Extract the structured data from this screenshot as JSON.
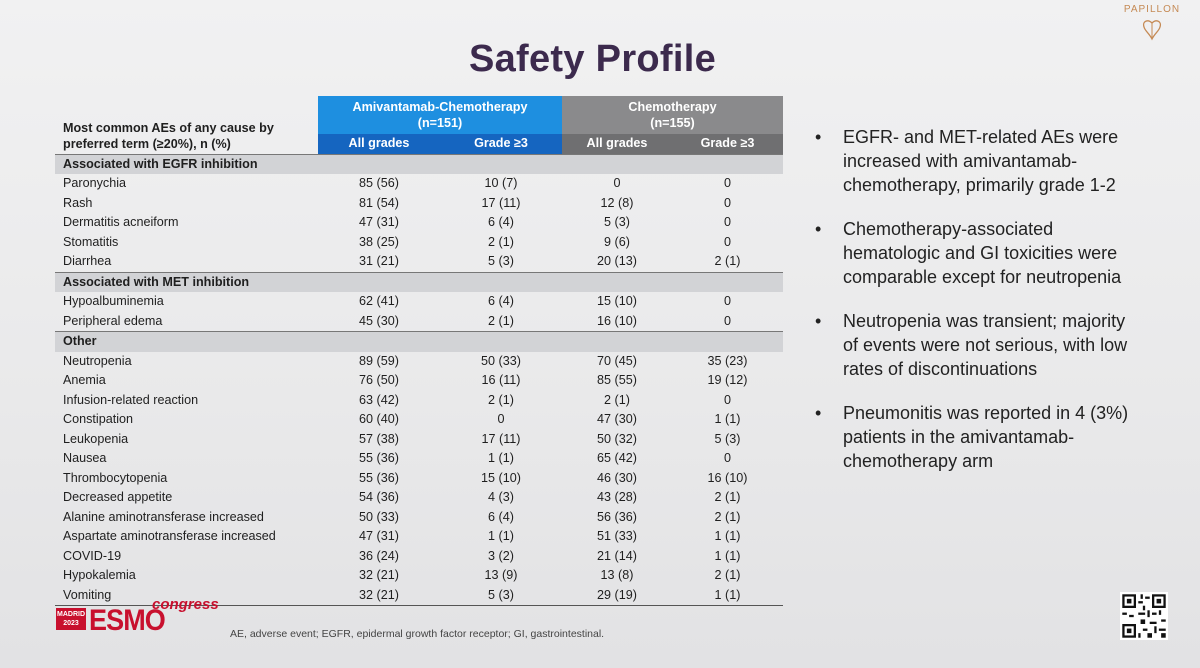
{
  "title": "Safety Profile",
  "logo": {
    "brand": "PAPILLON"
  },
  "table": {
    "row_header": "Most common AEs of any cause by preferred term (≥20%), n (%)",
    "arms": [
      {
        "name": "Amivantamab-Chemotherapy",
        "n": "(n=151)"
      },
      {
        "name": "Chemotherapy",
        "n": "(n=155)"
      }
    ],
    "subheaders": [
      "All grades",
      "Grade ≥3",
      "All grades",
      "Grade ≥3"
    ],
    "sections": [
      {
        "label": "Associated with EGFR inhibition",
        "rows": [
          {
            "ae": "Paronychia",
            "v": [
              "85 (56)",
              "10 (7)",
              "0",
              "0"
            ]
          },
          {
            "ae": "Rash",
            "v": [
              "81 (54)",
              "17 (11)",
              "12 (8)",
              "0"
            ]
          },
          {
            "ae": "Dermatitis acneiform",
            "v": [
              "47 (31)",
              "6 (4)",
              "5 (3)",
              "0"
            ]
          },
          {
            "ae": "Stomatitis",
            "v": [
              "38 (25)",
              "2 (1)",
              "9 (6)",
              "0"
            ]
          },
          {
            "ae": "Diarrhea",
            "v": [
              "31 (21)",
              "5 (3)",
              "20 (13)",
              "2 (1)"
            ]
          }
        ]
      },
      {
        "label": "Associated with MET inhibition",
        "rows": [
          {
            "ae": "Hypoalbuminemia",
            "v": [
              "62 (41)",
              "6 (4)",
              "15 (10)",
              "0"
            ]
          },
          {
            "ae": "Peripheral edema",
            "v": [
              "45 (30)",
              "2 (1)",
              "16 (10)",
              "0"
            ]
          }
        ]
      },
      {
        "label": "Other",
        "rows": [
          {
            "ae": "Neutropenia",
            "v": [
              "89 (59)",
              "50 (33)",
              "70 (45)",
              "35 (23)"
            ]
          },
          {
            "ae": "Anemia",
            "v": [
              "76 (50)",
              "16 (11)",
              "85 (55)",
              "19 (12)"
            ]
          },
          {
            "ae": "Infusion-related reaction",
            "v": [
              "63 (42)",
              "2 (1)",
              "2 (1)",
              "0"
            ]
          },
          {
            "ae": "Constipation",
            "v": [
              "60 (40)",
              "0",
              "47 (30)",
              "1 (1)"
            ]
          },
          {
            "ae": "Leukopenia",
            "v": [
              "57 (38)",
              "17 (11)",
              "50 (32)",
              "5 (3)"
            ]
          },
          {
            "ae": "Nausea",
            "v": [
              "55 (36)",
              "1 (1)",
              "65 (42)",
              "0"
            ]
          },
          {
            "ae": "Thrombocytopenia",
            "v": [
              "55 (36)",
              "15 (10)",
              "46 (30)",
              "16 (10)"
            ]
          },
          {
            "ae": "Decreased appetite",
            "v": [
              "54 (36)",
              "4 (3)",
              "43 (28)",
              "2 (1)"
            ]
          },
          {
            "ae": "Alanine aminotransferase increased",
            "v": [
              "50 (33)",
              "6 (4)",
              "56 (36)",
              "2 (1)"
            ]
          },
          {
            "ae": "Aspartate aminotransferase increased",
            "v": [
              "47 (31)",
              "1 (1)",
              "51 (33)",
              "1 (1)"
            ]
          },
          {
            "ae": "COVID-19",
            "v": [
              "36 (24)",
              "3 (2)",
              "21 (14)",
              "1 (1)"
            ]
          },
          {
            "ae": "Hypokalemia",
            "v": [
              "32 (21)",
              "13 (9)",
              "13 (8)",
              "2 (1)"
            ]
          },
          {
            "ae": "Vomiting",
            "v": [
              "32 (21)",
              "5 (3)",
              "29 (19)",
              "1 (1)"
            ]
          }
        ]
      }
    ]
  },
  "bullets": [
    "EGFR- and MET-related AEs were increased with amivantamab-chemotherapy, primarily grade 1-2",
    "Chemotherapy-associated hematologic and GI toxicities were comparable except for neutropenia",
    "Neutropenia was transient; majority of events were not serious, with low rates of discontinuations",
    "Pneumonitis was reported in 4 (3%) patients in the amivantamab-chemotherapy arm"
  ],
  "bullet_glyph": "•",
  "congress": {
    "city": "MADRID",
    "year": "2023",
    "name": "ESMO",
    "tag": "congress"
  },
  "footnote": "AE, adverse event; EGFR, epidermal growth factor receptor; GI, gastrointestinal.",
  "colors": {
    "arm1": "#1e8fe0",
    "arm1_sub": "#1565c0",
    "arm2": "#8a8a8c",
    "arm2_sub": "#6f6f71",
    "esmo": "#c8102e",
    "title": "#3c2a4d"
  }
}
